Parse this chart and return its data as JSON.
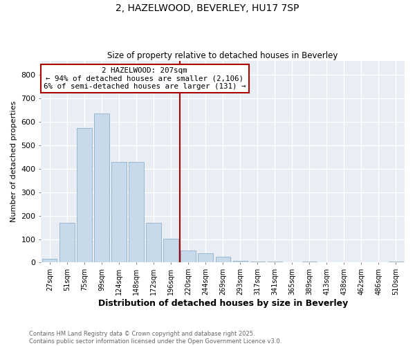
{
  "title": "2, HAZELWOOD, BEVERLEY, HU17 7SP",
  "subtitle": "Size of property relative to detached houses in Beverley",
  "xlabel": "Distribution of detached houses by size in Beverley",
  "ylabel": "Number of detached properties",
  "footnote1": "Contains HM Land Registry data © Crown copyright and database right 2025.",
  "footnote2": "Contains public sector information licensed under the Open Government Licence v3.0.",
  "categories": [
    "27sqm",
    "51sqm",
    "75sqm",
    "99sqm",
    "124sqm",
    "148sqm",
    "172sqm",
    "196sqm",
    "220sqm",
    "244sqm",
    "269sqm",
    "293sqm",
    "317sqm",
    "341sqm",
    "365sqm",
    "389sqm",
    "413sqm",
    "438sqm",
    "462sqm",
    "486sqm",
    "510sqm"
  ],
  "values": [
    15,
    170,
    575,
    635,
    430,
    430,
    170,
    103,
    50,
    40,
    25,
    8,
    5,
    3,
    2,
    5,
    2,
    1,
    1,
    0,
    5
  ],
  "bar_color": "#c8daea",
  "bar_edge_color": "#90b0cc",
  "vline_color": "#aa0000",
  "annotation_text": "2 HAZELWOOD: 207sqm\n← 94% of detached houses are smaller (2,106)\n6% of semi-detached houses are larger (131) →",
  "annotation_box_color": "#aa0000",
  "ylim": [
    0,
    860
  ],
  "yticks": [
    0,
    100,
    200,
    300,
    400,
    500,
    600,
    700,
    800
  ],
  "fig_background": "#ffffff",
  "plot_background": "#e8eef4",
  "grid_color": "#ffffff",
  "footnote_color": "#666666"
}
